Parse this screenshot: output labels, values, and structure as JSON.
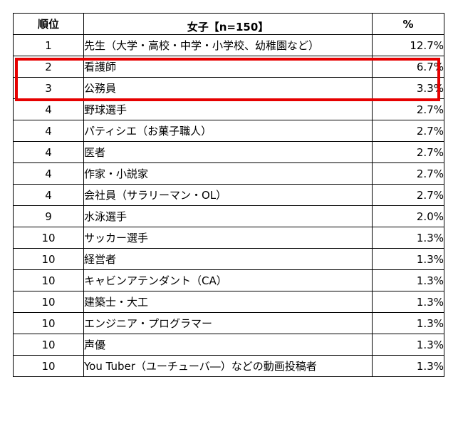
{
  "table": {
    "header": {
      "rank": "順位",
      "group": "女子【n=150】",
      "percent": "%"
    },
    "rows": [
      {
        "rank": "1",
        "job": "先生（大学・高校・中学・小学校、幼稚園など）",
        "pct": "12.7%"
      },
      {
        "rank": "2",
        "job": "看護師",
        "pct": "6.7%"
      },
      {
        "rank": "3",
        "job": "公務員",
        "pct": "3.3%"
      },
      {
        "rank": "4",
        "job": "野球選手",
        "pct": "2.7%"
      },
      {
        "rank": "4",
        "job": "パティシエ（お菓子職人）",
        "pct": "2.7%"
      },
      {
        "rank": "4",
        "job": "医者",
        "pct": "2.7%"
      },
      {
        "rank": "4",
        "job": "作家・小説家",
        "pct": "2.7%"
      },
      {
        "rank": "4",
        "job": "会社員（サラリーマン・OL）",
        "pct": "2.7%"
      },
      {
        "rank": "9",
        "job": "水泳選手",
        "pct": "2.0%"
      },
      {
        "rank": "10",
        "job": "サッカー選手",
        "pct": "1.3%"
      },
      {
        "rank": "10",
        "job": "経営者",
        "pct": "1.3%"
      },
      {
        "rank": "10",
        "job": "キャビンアテンダント（CA）",
        "pct": "1.3%"
      },
      {
        "rank": "10",
        "job": "建築士・大工",
        "pct": "1.3%"
      },
      {
        "rank": "10",
        "job": "エンジニア・プログラマー",
        "pct": "1.3%"
      },
      {
        "rank": "10",
        "job": "声優",
        "pct": "1.3%"
      },
      {
        "rank": "10",
        "job": "You Tuber（ユーチューバ―）などの動画投稿者",
        "pct": "1.3%"
      }
    ]
  },
  "highlight": {
    "color": "#e60000",
    "row": "1"
  }
}
